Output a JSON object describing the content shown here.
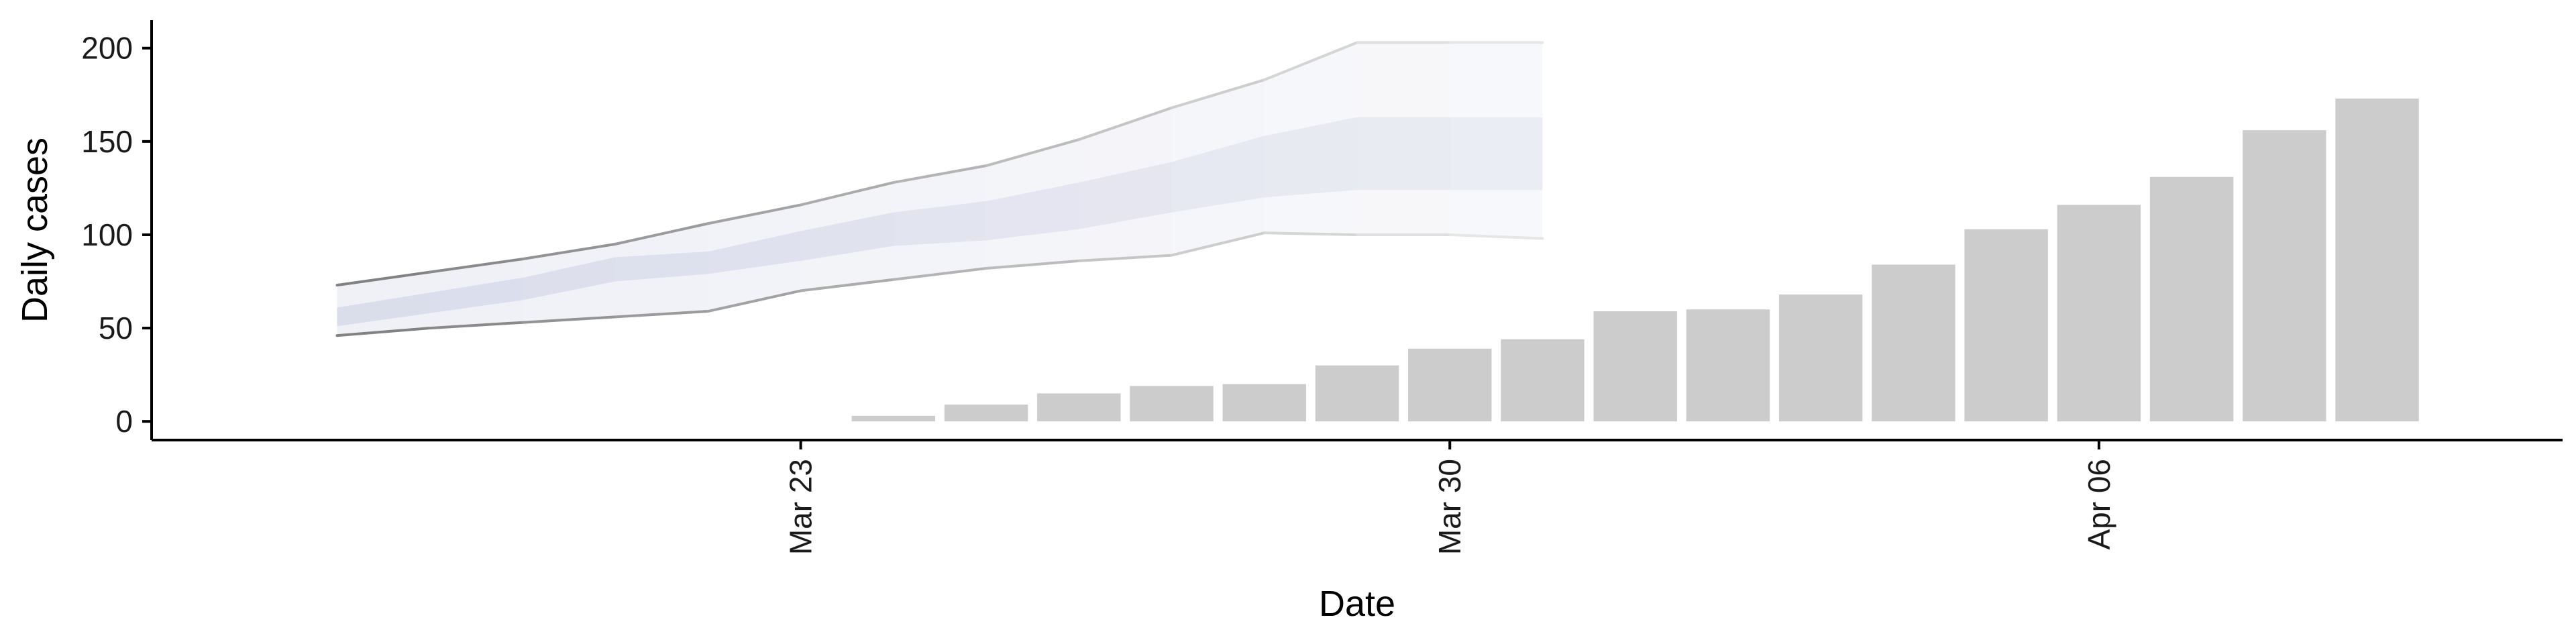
{
  "chart_data": {
    "type": "bar",
    "title": "",
    "xlabel": "Date",
    "ylabel": "Daily cases",
    "ylim": [
      -10,
      215
    ],
    "yticks": [
      0,
      50,
      100,
      150,
      200
    ],
    "xlim": [
      "2020-03-16",
      "2020-04-11"
    ],
    "xticks": [
      {
        "date": "2020-03-23",
        "label": "Mar 23"
      },
      {
        "date": "2020-03-30",
        "label": "Mar 30"
      },
      {
        "date": "2020-04-06",
        "label": "Apr 06"
      }
    ],
    "grid": false,
    "legend": "none",
    "bars": {
      "color": "#cccccc",
      "dates": [
        "2020-03-24",
        "2020-03-25",
        "2020-03-26",
        "2020-03-27",
        "2020-03-28",
        "2020-03-29",
        "2020-03-30",
        "2020-03-31",
        "2020-04-01",
        "2020-04-02",
        "2020-04-03",
        "2020-04-04",
        "2020-04-05",
        "2020-04-06",
        "2020-04-07",
        "2020-04-08",
        "2020-04-09",
        "2020-04-10"
      ],
      "values": [
        3,
        9,
        15,
        19,
        20,
        30,
        39,
        44,
        59,
        60,
        68,
        84,
        103,
        116,
        131,
        156,
        173,
        0
      ]
    },
    "forecast": {
      "color": "#b7bdd8",
      "dates": [
        "2020-03-18",
        "2020-03-19",
        "2020-03-20",
        "2020-03-21",
        "2020-03-22",
        "2020-03-23",
        "2020-03-24",
        "2020-03-25",
        "2020-03-26",
        "2020-03-27",
        "2020-03-28",
        "2020-03-29",
        "2020-03-30",
        "2020-03-31"
      ],
      "outer_lower": [
        46,
        50,
        53,
        56,
        59,
        70,
        76,
        82,
        86,
        89,
        101,
        100,
        100,
        98
      ],
      "outer_upper": [
        73,
        80,
        87,
        95,
        106,
        116,
        128,
        137,
        151,
        168,
        183,
        203,
        203,
        203
      ],
      "inner_lower": [
        51,
        58,
        65,
        75,
        79,
        86,
        94,
        97,
        103,
        112,
        120,
        124,
        124,
        124
      ],
      "inner_upper": [
        61,
        69,
        77,
        88,
        91,
        102,
        112,
        118,
        128,
        139,
        153,
        163,
        163,
        163
      ]
    }
  }
}
